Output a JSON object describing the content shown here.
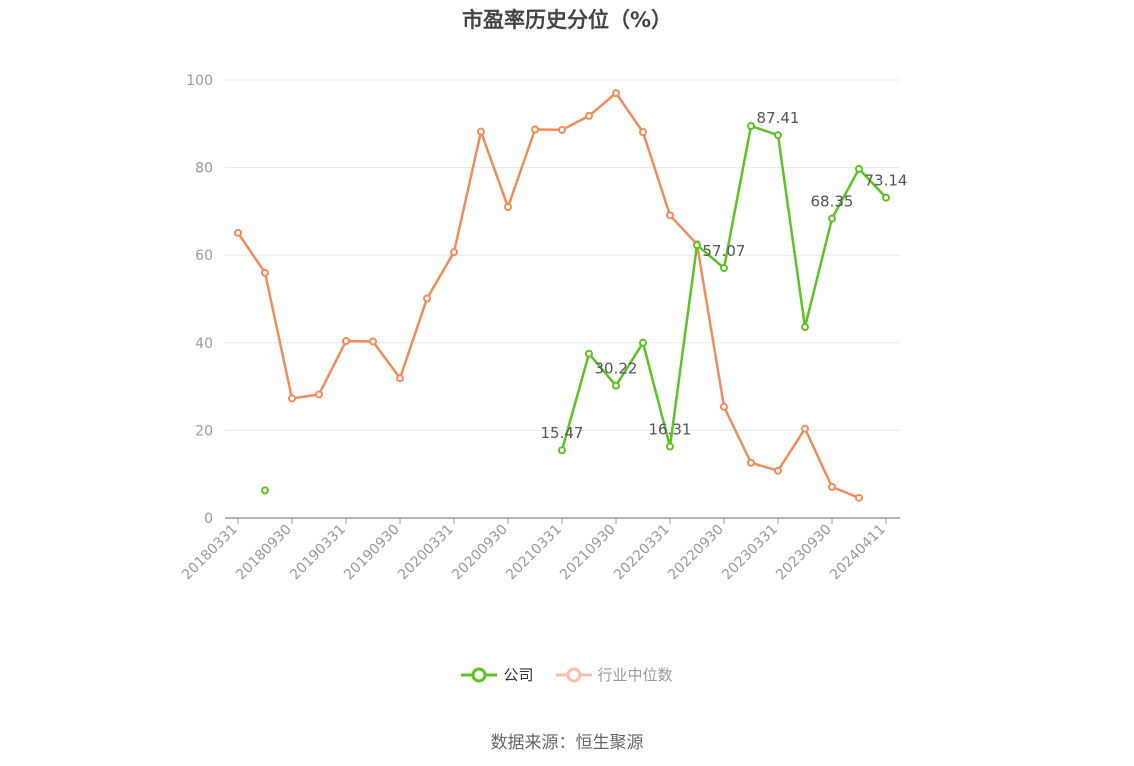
{
  "chart_data": {
    "type": "line",
    "title": "市盈率历史分位（%）",
    "source_text": "数据来源：恒生聚源",
    "ylim": [
      0,
      100
    ],
    "y_ticks": [
      0,
      20,
      40,
      60,
      80,
      100
    ],
    "x_tick_labels": [
      "20180331",
      "20180930",
      "20190331",
      "20190930",
      "20200331",
      "20200930",
      "20210331",
      "20210930",
      "20220331",
      "20220930",
      "20230331",
      "20230930",
      "20240411"
    ],
    "legend_position": "bottom-center",
    "grid": true,
    "series": [
      {
        "name": "公司",
        "color": "#5cc323",
        "values": [
          null,
          6.3,
          null,
          null,
          null,
          null,
          null,
          null,
          null,
          null,
          null,
          null,
          15.47,
          37.5,
          30.22,
          40.0,
          16.31,
          62.3,
          57.07,
          89.5,
          87.41,
          43.6,
          68.35,
          79.7,
          73.14
        ]
      },
      {
        "name": "行业中位数",
        "color": "#f08c5a",
        "values": [
          65.1,
          56.0,
          27.3,
          28.2,
          40.4,
          40.3,
          31.9,
          50.1,
          60.7,
          88.2,
          71.0,
          88.7,
          88.6,
          91.8,
          97.0,
          88.1,
          69.1,
          62.5,
          25.4,
          12.6,
          10.8,
          20.4,
          7.1,
          4.6,
          null
        ]
      }
    ],
    "data_labels": [
      {
        "series": 0,
        "index": 12,
        "text": "15.47"
      },
      {
        "series": 0,
        "index": 14,
        "text": "30.22"
      },
      {
        "series": 0,
        "index": 16,
        "text": "16.31"
      },
      {
        "series": 0,
        "index": 18,
        "text": "57.07"
      },
      {
        "series": 0,
        "index": 20,
        "text": "87.41"
      },
      {
        "series": 0,
        "index": 22,
        "text": "68.35"
      },
      {
        "series": 0,
        "index": 24,
        "text": "73.14"
      }
    ]
  }
}
